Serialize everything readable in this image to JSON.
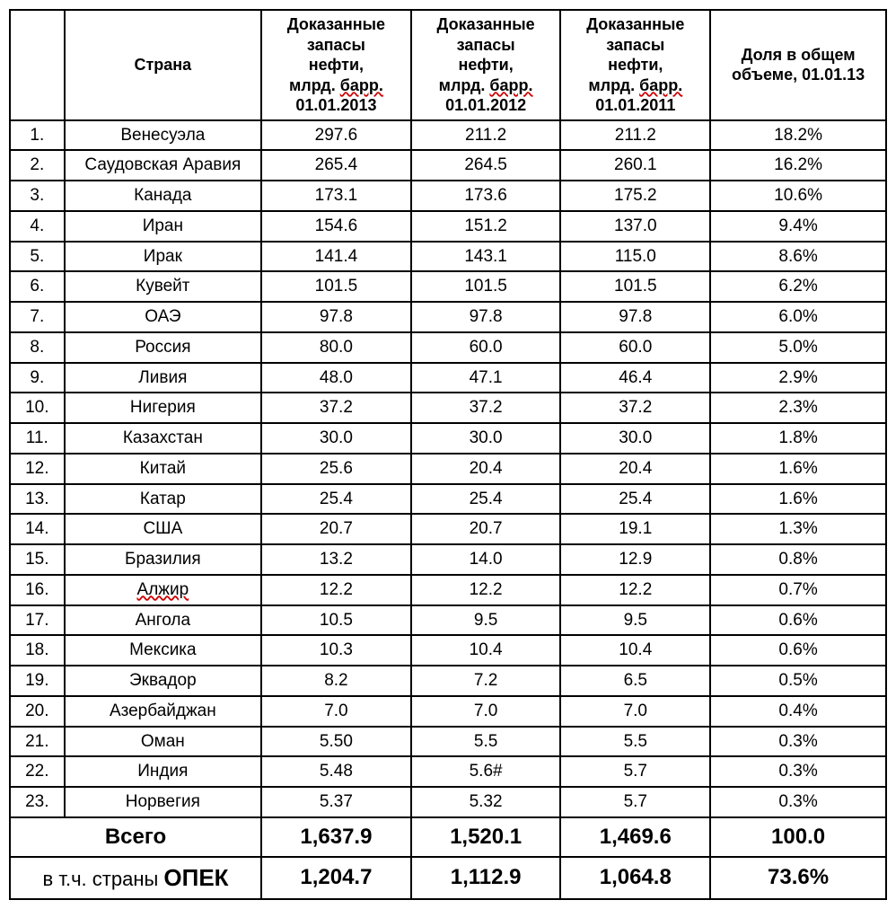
{
  "table": {
    "type": "table",
    "background_color": "#ffffff",
    "border_color": "#000000",
    "header_fontsize": 18,
    "cell_fontsize": 19,
    "total_fontsize": 24,
    "columns": {
      "num": "",
      "country": "Страна",
      "v2013": "Доказанные запасы нефти, млрд. барр. 01.01.2013",
      "v2012": "Доказанные запасы нефти, млрд. барр. 01.01.2012",
      "v2011": "Доказанные запасы нефти, млрд. барр. 01.01.2011",
      "share": "Доля в общем объеме, 01.01.13"
    },
    "header_parts": {
      "line1": "Доказанные",
      "line2": "запасы",
      "line3": "нефти,",
      "line4_a": "млрд. ",
      "line4_b": "барр.",
      "d2013": "01.01.2013",
      "d2012": "01.01.2012",
      "d2011": "01.01.2011",
      "share1": "Доля в общем",
      "share2": "объеме, 01.01.13"
    },
    "rows": [
      {
        "num": "1.",
        "country": "Венесуэла",
        "v2013": "297.6",
        "v2012": "211.2",
        "v2011": "211.2",
        "share": "18.2%",
        "sq": false
      },
      {
        "num": "2.",
        "country": "Саудовская Аравия",
        "v2013": "265.4",
        "v2012": "264.5",
        "v2011": "260.1",
        "share": "16.2%",
        "sq": false
      },
      {
        "num": "3.",
        "country": "Канада",
        "v2013": "173.1",
        "v2012": "173.6",
        "v2011": "175.2",
        "share": "10.6%",
        "sq": false
      },
      {
        "num": "4.",
        "country": "Иран",
        "v2013": "154.6",
        "v2012": "151.2",
        "v2011": "137.0",
        "share": "9.4%",
        "sq": false
      },
      {
        "num": "5.",
        "country": "Ирак",
        "v2013": "141.4",
        "v2012": "143.1",
        "v2011": "115.0",
        "share": "8.6%",
        "sq": false
      },
      {
        "num": "6.",
        "country": "Кувейт",
        "v2013": "101.5",
        "v2012": "101.5",
        "v2011": "101.5",
        "share": "6.2%",
        "sq": false
      },
      {
        "num": "7.",
        "country": "ОАЭ",
        "v2013": "97.8",
        "v2012": "97.8",
        "v2011": "97.8",
        "share": "6.0%",
        "sq": false
      },
      {
        "num": "8.",
        "country": "Россия",
        "v2013": "80.0",
        "v2012": "60.0",
        "v2011": "60.0",
        "share": "5.0%",
        "sq": false
      },
      {
        "num": "9.",
        "country": "Ливия",
        "v2013": "48.0",
        "v2012": "47.1",
        "v2011": "46.4",
        "share": "2.9%",
        "sq": false
      },
      {
        "num": "10.",
        "country": "Нигерия",
        "v2013": "37.2",
        "v2012": "37.2",
        "v2011": "37.2",
        "share": "2.3%",
        "sq": false
      },
      {
        "num": "11.",
        "country": "Казахстан",
        "v2013": "30.0",
        "v2012": "30.0",
        "v2011": "30.0",
        "share": "1.8%",
        "sq": false
      },
      {
        "num": "12.",
        "country": "Китай",
        "v2013": "25.6",
        "v2012": "20.4",
        "v2011": "20.4",
        "share": "1.6%",
        "sq": false
      },
      {
        "num": "13.",
        "country": "Катар",
        "v2013": "25.4",
        "v2012": "25.4",
        "v2011": "25.4",
        "share": "1.6%",
        "sq": false
      },
      {
        "num": "14.",
        "country": "США",
        "v2013": "20.7",
        "v2012": "20.7",
        "v2011": "19.1",
        "share": "1.3%",
        "sq": false
      },
      {
        "num": "15.",
        "country": "Бразилия",
        "v2013": "13.2",
        "v2012": "14.0",
        "v2011": "12.9",
        "share": "0.8%",
        "sq": false
      },
      {
        "num": "16.",
        "country": "Алжир",
        "v2013": "12.2",
        "v2012": "12.2",
        "v2011": "12.2",
        "share": "0.7%",
        "sq": true
      },
      {
        "num": "17.",
        "country": "Ангола",
        "v2013": "10.5",
        "v2012": "9.5",
        "v2011": "9.5",
        "share": "0.6%",
        "sq": false
      },
      {
        "num": "18.",
        "country": "Мексика",
        "v2013": "10.3",
        "v2012": "10.4",
        "v2011": "10.4",
        "share": "0.6%",
        "sq": false
      },
      {
        "num": "19.",
        "country": "Эквадор",
        "v2013": "8.2",
        "v2012": "7.2",
        "v2011": "6.5",
        "share": "0.5%",
        "sq": false
      },
      {
        "num": "20.",
        "country": "Азербайджан",
        "v2013": "7.0",
        "v2012": "7.0",
        "v2011": "7.0",
        "share": "0.4%",
        "sq": false
      },
      {
        "num": "21.",
        "country": "Оман",
        "v2013": "5.50",
        "v2012": "5.5",
        "v2011": "5.5",
        "share": "0.3%",
        "sq": false
      },
      {
        "num": "22.",
        "country": "Индия",
        "v2013": "5.48",
        "v2012": "5.6#",
        "v2011": "5.7",
        "share": "0.3%",
        "sq": false
      },
      {
        "num": "23.",
        "country": "Норвегия",
        "v2013": "5.37",
        "v2012": "5.32",
        "v2011": "5.7",
        "share": "0.3%",
        "sq": false
      }
    ],
    "total": {
      "label": "Всего",
      "v2013": "1,637.9",
      "v2012": "1,520.1",
      "v2011": "1,469.6",
      "share": "100.0"
    },
    "opec": {
      "label_a": "в т.ч. страны ",
      "label_b": "ОПЕК",
      "v2013": "1,204.7",
      "v2012": "1,112.9",
      "v2011": "1,064.8",
      "share": "73.6%"
    }
  }
}
